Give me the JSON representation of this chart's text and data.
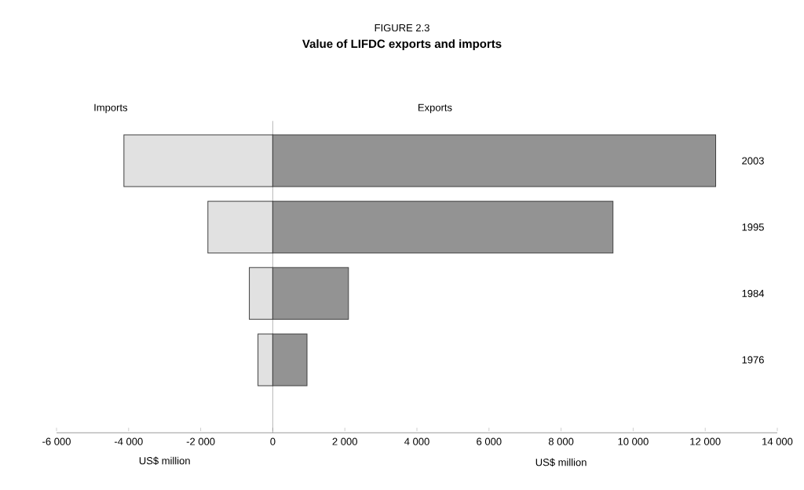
{
  "chart_data": {
    "type": "bar",
    "orientation": "horizontal",
    "stacked": true,
    "title": "FIGURE 2.3",
    "subtitle": "Value of LIFDC exports and imports",
    "categories": [
      "2003",
      "1995",
      "1984",
      "1976"
    ],
    "series": [
      {
        "name": "Imports",
        "color": "#e1e1e1",
        "values": [
          -4130,
          -1800,
          -650,
          -410
        ]
      },
      {
        "name": "Exports",
        "color": "#939393",
        "values": [
          12290,
          9440,
          2100,
          950
        ]
      }
    ],
    "xlim": [
      -6000,
      14000
    ],
    "xticks": [
      {
        "value": -6000,
        "label": "-6 000"
      },
      {
        "value": -4000,
        "label": "-4 000"
      },
      {
        "value": -2000,
        "label": "-2 000"
      },
      0,
      {
        "value": 2000,
        "label": "2 000"
      },
      {
        "value": 4000,
        "label": "4 000"
      },
      {
        "value": 6000,
        "label": "6 000"
      },
      {
        "value": 8000,
        "label": "8 000"
      },
      {
        "value": 10000,
        "label": "10 000"
      },
      {
        "value": 12000,
        "label": "12 000"
      },
      {
        "value": 14000,
        "label": "14 000"
      }
    ],
    "xlabel": "US$ million",
    "annotations": [
      "US$ million"
    ]
  }
}
